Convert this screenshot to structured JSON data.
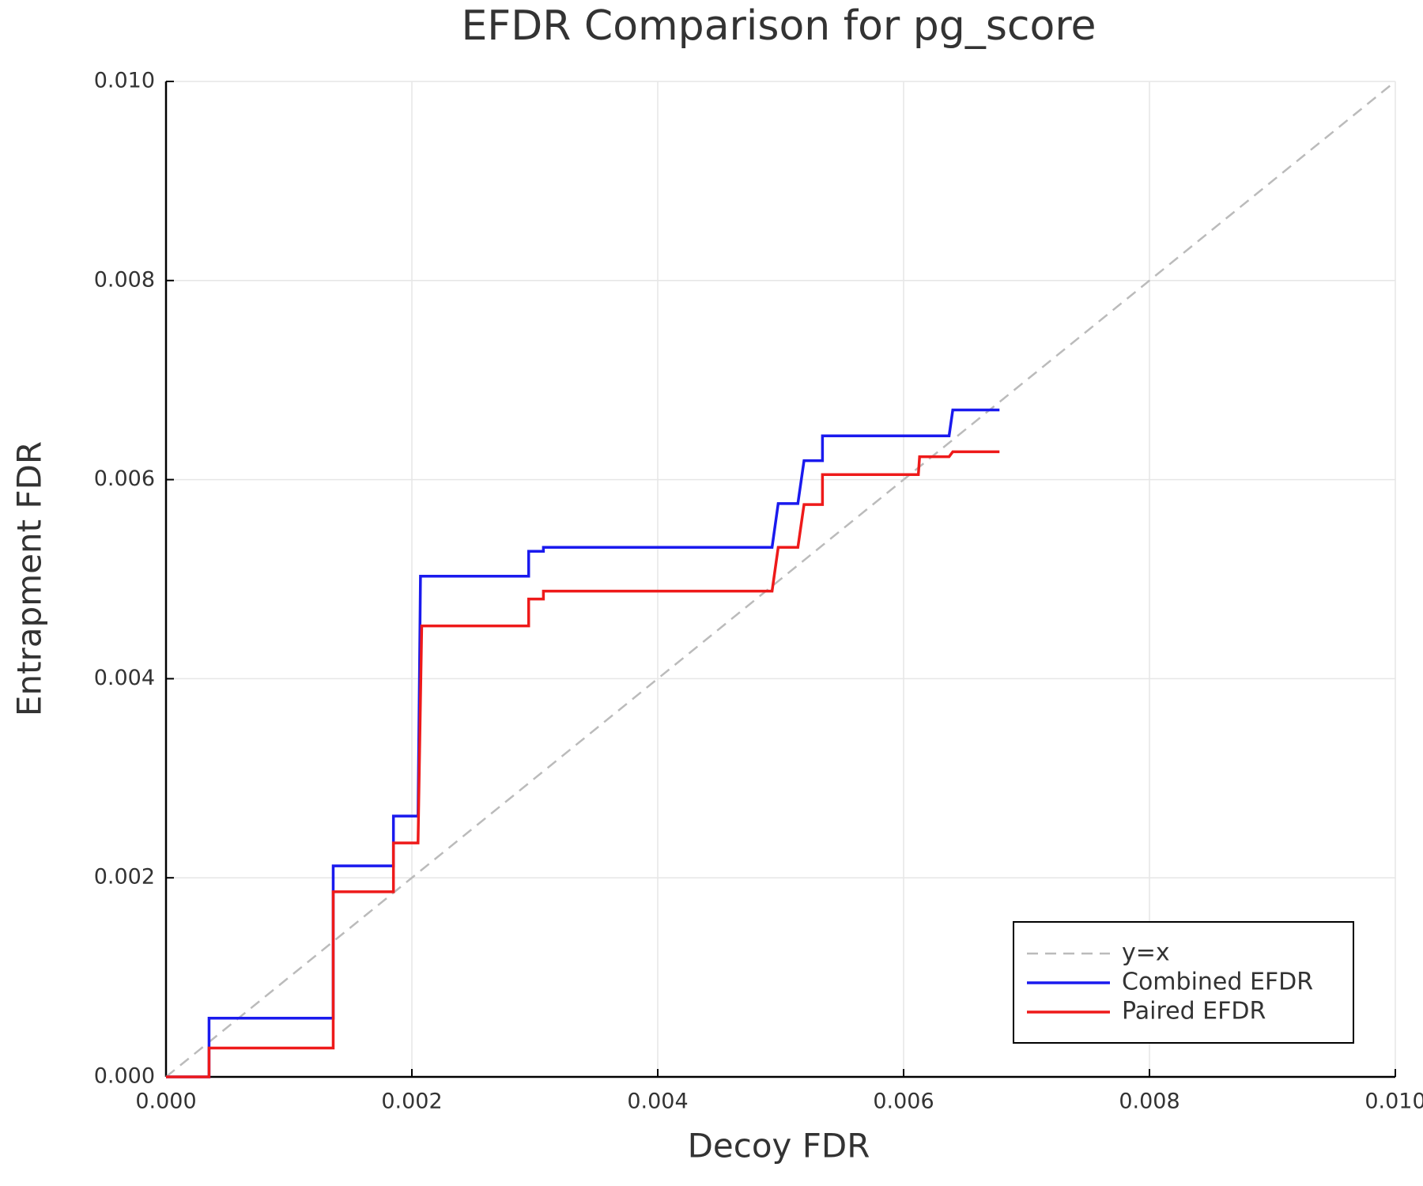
{
  "chart_data": {
    "type": "line",
    "title": "EFDR Comparison for pg_score",
    "xlabel": "Decoy FDR",
    "ylabel": "Entrapment FDR",
    "xlim": [
      0,
      0.01
    ],
    "ylim": [
      0,
      0.01
    ],
    "xticks": [
      {
        "value": 0,
        "label": "0.000"
      },
      {
        "value": 0.002,
        "label": "0.002"
      },
      {
        "value": 0.004,
        "label": "0.004"
      },
      {
        "value": 0.006,
        "label": "0.006"
      },
      {
        "value": 0.008,
        "label": "0.008"
      },
      {
        "value": 0.01,
        "label": "0.010"
      }
    ],
    "yticks": [
      {
        "value": 0,
        "label": "0.000"
      },
      {
        "value": 0.002,
        "label": "0.002"
      },
      {
        "value": 0.004,
        "label": "0.004"
      },
      {
        "value": 0.006,
        "label": "0.006"
      },
      {
        "value": 0.008,
        "label": "0.008"
      },
      {
        "value": 0.01,
        "label": "0.010"
      }
    ],
    "grid": true,
    "legend": "lower right",
    "series": [
      {
        "name": "y=x",
        "color": "#bbbbbb",
        "dash": true,
        "x": [
          0,
          0.01
        ],
        "values": [
          0,
          0.01
        ]
      },
      {
        "name": "Combined EFDR",
        "color": "#1a1aee",
        "x": [
          0,
          0.00035,
          0.00035,
          0.00136,
          0.00136,
          0.00185,
          0.00185,
          0.00205,
          0.00207,
          0.00295,
          0.00295,
          0.00307,
          0.00307,
          0.00493,
          0.00498,
          0.00514,
          0.00519,
          0.00534,
          0.00534,
          0.00637,
          0.0064,
          0.00678
        ],
        "values": [
          0,
          0,
          0.00059,
          0.00059,
          0.00212,
          0.00212,
          0.00262,
          0.00262,
          0.00503,
          0.00503,
          0.00528,
          0.00528,
          0.00532,
          0.00532,
          0.00576,
          0.00576,
          0.00619,
          0.00619,
          0.00644,
          0.00644,
          0.0067,
          0.0067
        ]
      },
      {
        "name": "Paired EFDR",
        "color": "#ee1a1a",
        "x": [
          0,
          0.00035,
          0.00035,
          0.00136,
          0.00136,
          0.00185,
          0.00185,
          0.00205,
          0.00208,
          0.00295,
          0.00295,
          0.00307,
          0.00307,
          0.00493,
          0.00498,
          0.00514,
          0.00519,
          0.00534,
          0.00534,
          0.00612,
          0.00613,
          0.00637,
          0.0064,
          0.00678
        ],
        "values": [
          0,
          0,
          0.00029,
          0.00029,
          0.00186,
          0.00186,
          0.00235,
          0.00235,
          0.00453,
          0.00453,
          0.0048,
          0.0048,
          0.00488,
          0.00488,
          0.00532,
          0.00532,
          0.00575,
          0.00575,
          0.00605,
          0.00605,
          0.00623,
          0.00623,
          0.00628,
          0.00628
        ]
      }
    ]
  }
}
